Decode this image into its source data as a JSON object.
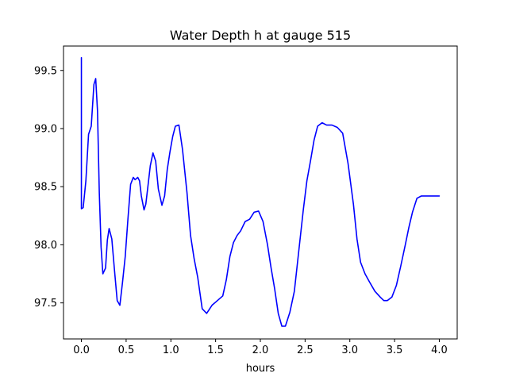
{
  "chart_data": {
    "type": "line",
    "title": "Water Depth h at gauge 515",
    "xlabel": "hours",
    "ylabel": "",
    "xlim": [
      -0.2,
      4.2
    ],
    "ylim": [
      97.19,
      99.71
    ],
    "xticks": [
      0.0,
      0.5,
      1.0,
      1.5,
      2.0,
      2.5,
      3.0,
      3.5,
      4.0
    ],
    "xtick_labels": [
      "0.0",
      "0.5",
      "1.0",
      "1.5",
      "2.0",
      "2.5",
      "3.0",
      "3.5",
      "4.0"
    ],
    "yticks": [
      97.5,
      98.0,
      98.5,
      99.0,
      99.5
    ],
    "ytick_labels": [
      "97.5",
      "98.0",
      "98.5",
      "99.0",
      "99.5"
    ],
    "grid": false,
    "line_color": "#0000ff",
    "series": [
      {
        "x": [
          0.0,
          0.0,
          0.02,
          0.05,
          0.08,
          0.11,
          0.14,
          0.16,
          0.18,
          0.2,
          0.22,
          0.24,
          0.27,
          0.29,
          0.31,
          0.34,
          0.37,
          0.4,
          0.43,
          0.46,
          0.49,
          0.52,
          0.55,
          0.58,
          0.6,
          0.63,
          0.65,
          0.67,
          0.7,
          0.72,
          0.74,
          0.77,
          0.8,
          0.83,
          0.86,
          0.9,
          0.93,
          0.96,
          0.99,
          1.02,
          1.05,
          1.09,
          1.13,
          1.18,
          1.22,
          1.26,
          1.3,
          1.35,
          1.4,
          1.46,
          1.52,
          1.58,
          1.62,
          1.66,
          1.7,
          1.74,
          1.78,
          1.83,
          1.88,
          1.93,
          1.98,
          2.03,
          2.08,
          2.12,
          2.16,
          2.2,
          2.24,
          2.28,
          2.33,
          2.38,
          2.43,
          2.48,
          2.52,
          2.56,
          2.6,
          2.64,
          2.69,
          2.74,
          2.8,
          2.86,
          2.92,
          2.98,
          3.04,
          3.08,
          3.12,
          3.17,
          3.22,
          3.28,
          3.34,
          3.38,
          3.42,
          3.47,
          3.52,
          3.57,
          3.62,
          3.66,
          3.7,
          3.75,
          3.8,
          3.86,
          3.92,
          4.0
        ],
        "y": [
          99.61,
          98.31,
          98.32,
          98.55,
          98.95,
          99.02,
          99.38,
          99.43,
          99.15,
          98.45,
          97.98,
          97.75,
          97.8,
          98.04,
          98.14,
          98.05,
          97.78,
          97.52,
          97.48,
          97.68,
          97.9,
          98.22,
          98.52,
          98.58,
          98.56,
          98.58,
          98.55,
          98.42,
          98.3,
          98.35,
          98.48,
          98.68,
          98.79,
          98.72,
          98.48,
          98.34,
          98.42,
          98.65,
          98.8,
          98.93,
          99.02,
          99.03,
          98.82,
          98.45,
          98.08,
          97.88,
          97.72,
          97.45,
          97.41,
          97.48,
          97.52,
          97.56,
          97.7,
          97.9,
          98.02,
          98.08,
          98.12,
          98.2,
          98.22,
          98.28,
          98.29,
          98.2,
          98.0,
          97.8,
          97.62,
          97.41,
          97.3,
          97.3,
          97.42,
          97.6,
          97.95,
          98.3,
          98.55,
          98.72,
          98.9,
          99.02,
          99.05,
          99.03,
          99.03,
          99.01,
          98.96,
          98.7,
          98.35,
          98.05,
          97.85,
          97.75,
          97.68,
          97.6,
          97.55,
          97.52,
          97.52,
          97.55,
          97.65,
          97.82,
          98.0,
          98.15,
          98.28,
          98.4,
          98.42,
          98.42,
          98.42,
          98.42
        ]
      }
    ]
  }
}
